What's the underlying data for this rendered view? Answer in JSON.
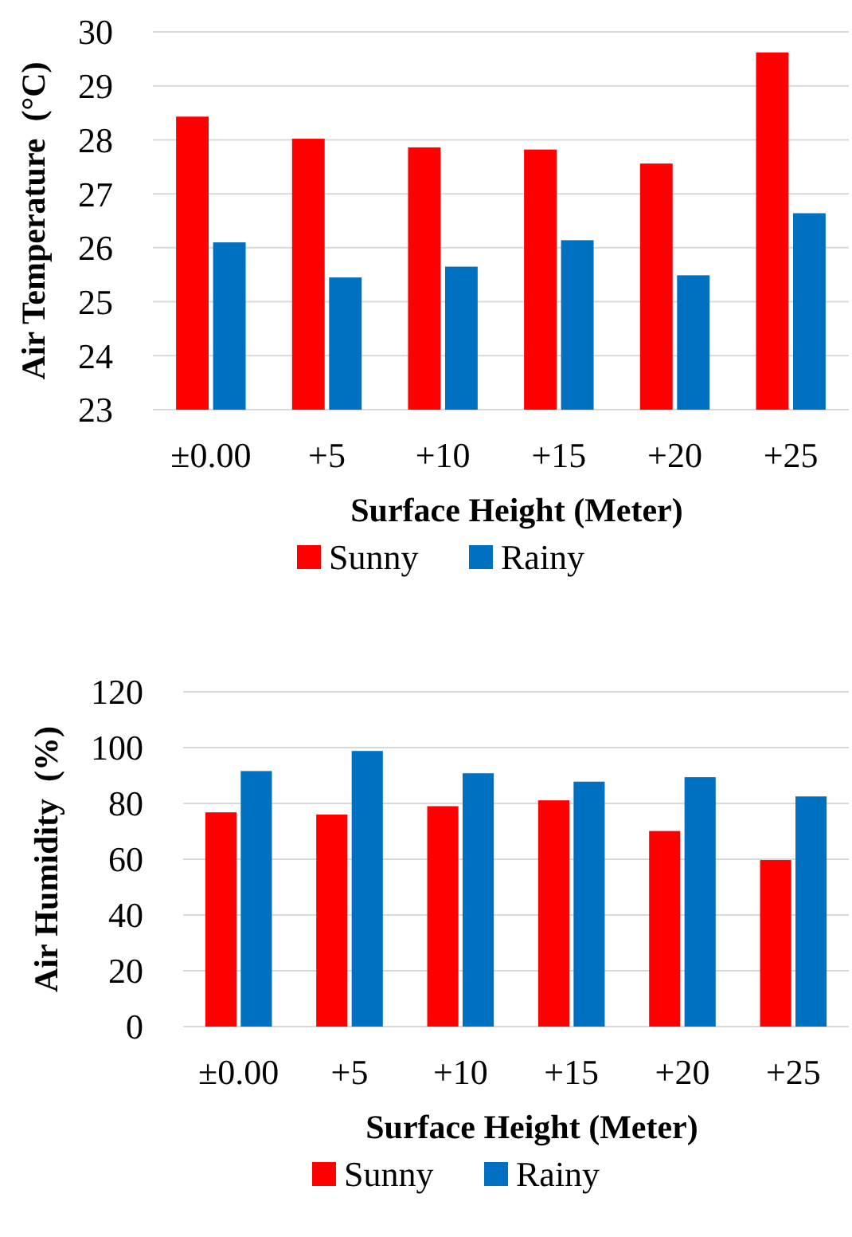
{
  "chart_data": [
    {
      "type": "bar",
      "xlabel": "Surface Height (Meter)",
      "ylabel": "Air Temperature  (°C)",
      "categories": [
        "±0.00",
        "+5",
        "+10",
        "+15",
        "+20",
        "+25"
      ],
      "series": [
        {
          "name": "Sunny",
          "color": "#ff0000",
          "values": [
            28.43,
            28.02,
            27.86,
            27.82,
            27.56,
            29.62
          ]
        },
        {
          "name": "Rainy",
          "color": "#0070c0",
          "values": [
            26.1,
            25.45,
            25.65,
            26.14,
            25.49,
            26.64
          ]
        }
      ],
      "ylim": [
        23,
        30
      ],
      "yticks": [
        23,
        24,
        25,
        26,
        27,
        28,
        29,
        30
      ],
      "grid": "y",
      "legend": "bottom"
    },
    {
      "type": "bar",
      "xlabel": "Surface Height (Meter)",
      "ylabel": "Air Humidity  (%)",
      "categories": [
        "±0.00",
        "+5",
        "+10",
        "+15",
        "+20",
        "+25"
      ],
      "series": [
        {
          "name": "Sunny",
          "color": "#ff0000",
          "values": [
            76.8,
            76,
            79,
            81.1,
            70.1,
            59.7
          ]
        },
        {
          "name": "Rainy",
          "color": "#0070c0",
          "values": [
            91.6,
            98.8,
            90.8,
            87.8,
            89.4,
            82.5
          ]
        }
      ],
      "ylim": [
        0,
        120
      ],
      "yticks": [
        0,
        20,
        40,
        60,
        80,
        100,
        120
      ],
      "grid": "y",
      "legend": "bottom"
    }
  ]
}
